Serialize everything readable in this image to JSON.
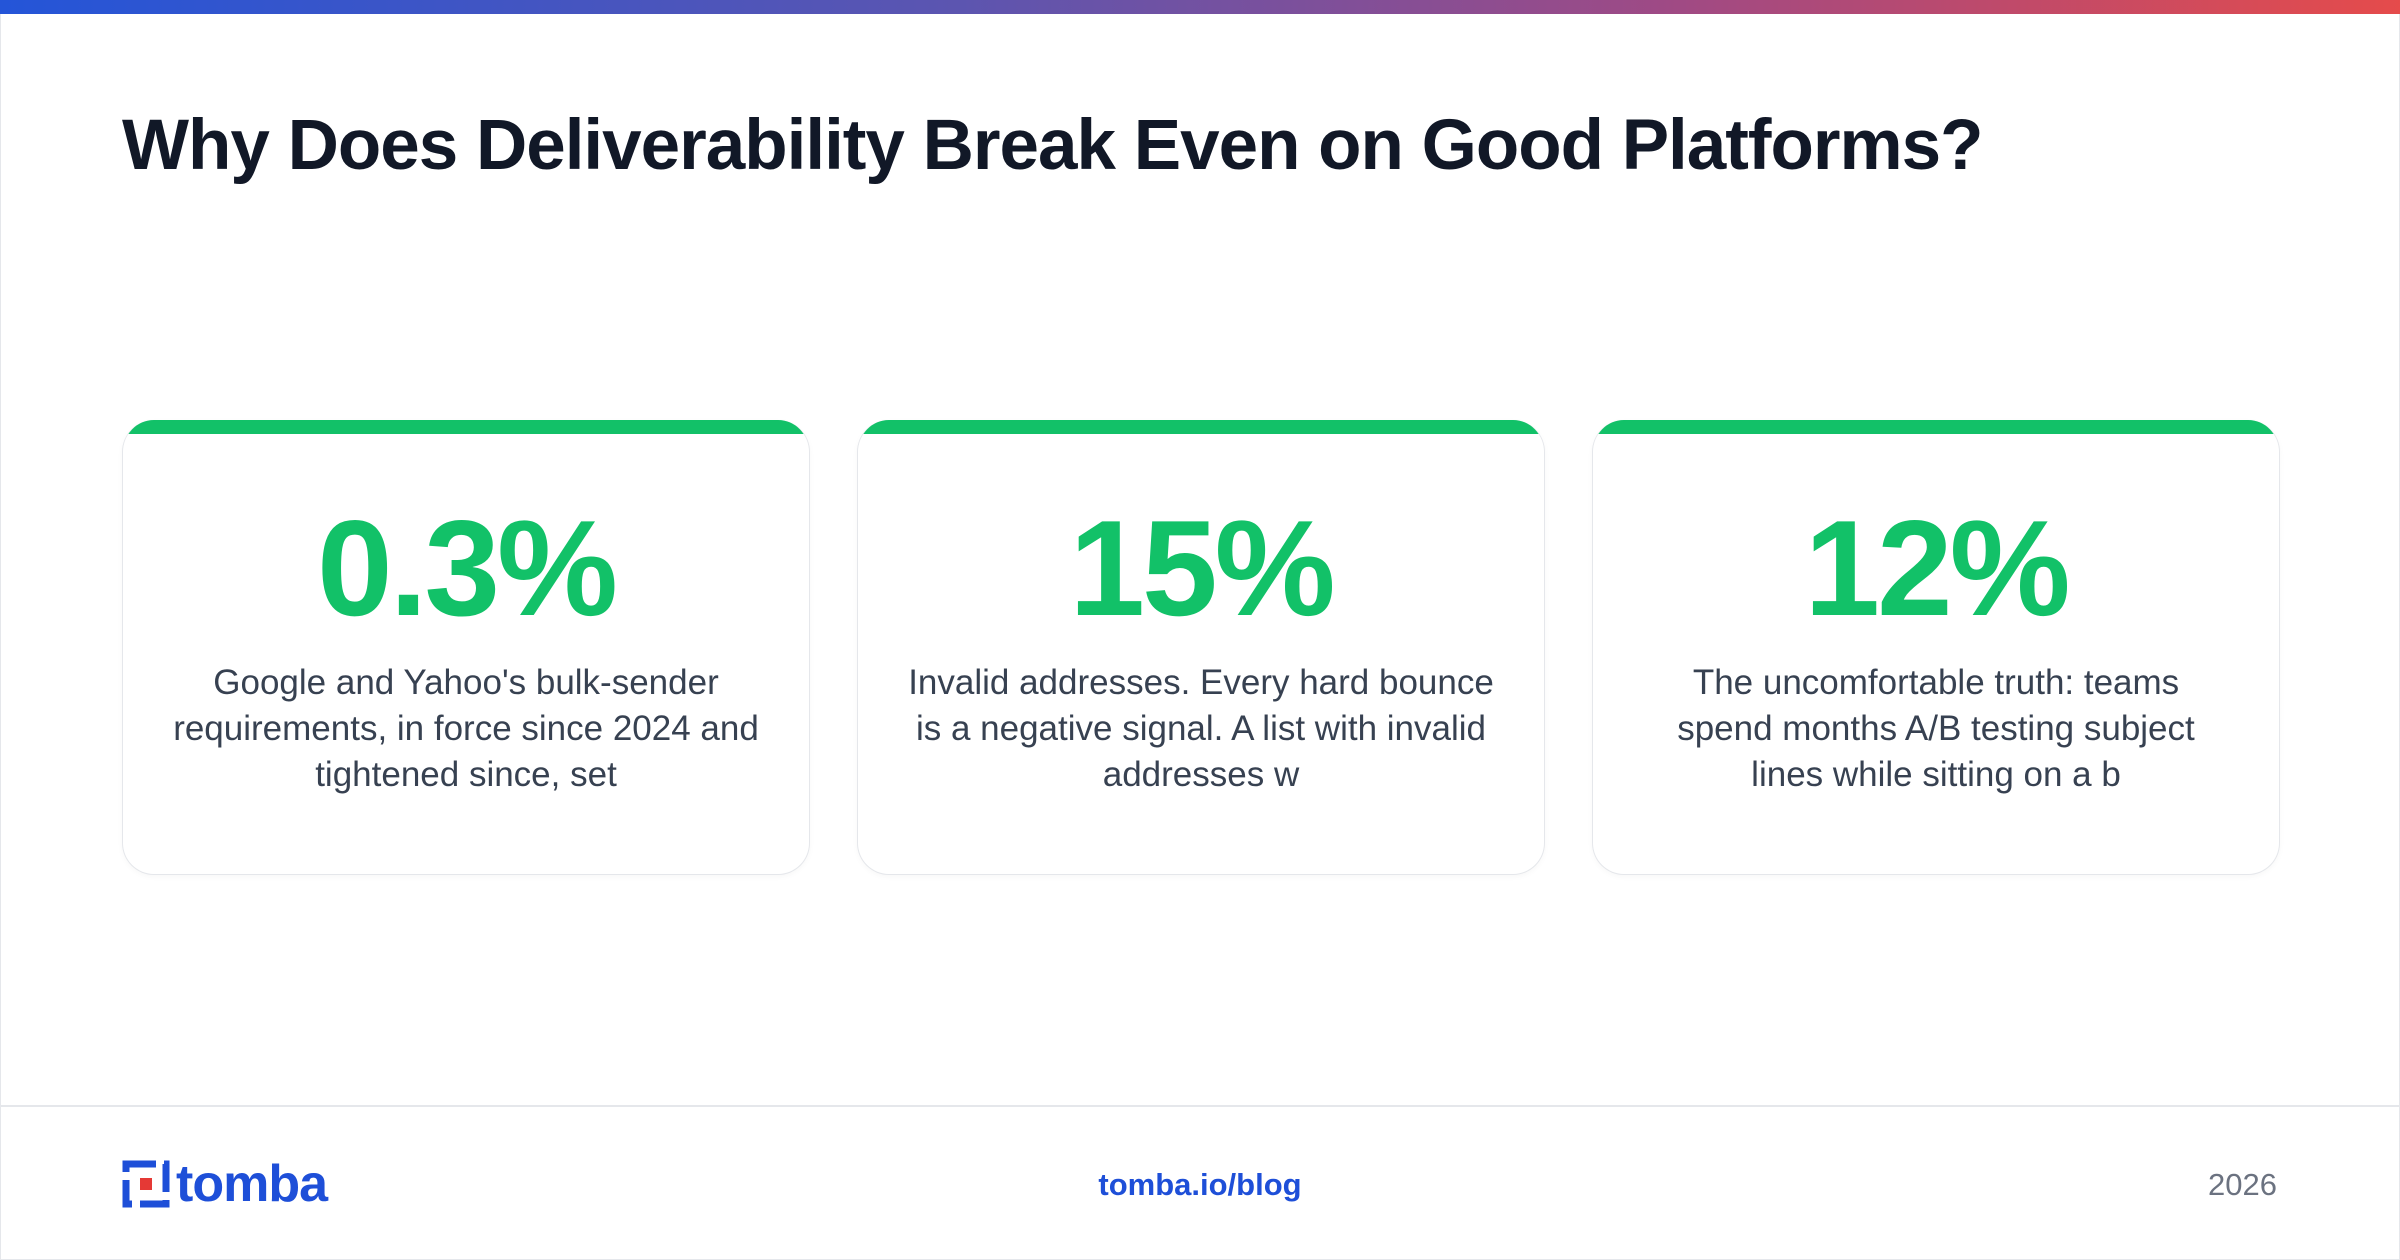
{
  "title": "Why Does Deliverability Break Even on Good Platforms?",
  "stats": [
    {
      "value": "0.3%",
      "description": "Google and Yahoo's bulk-sender requirements, in force since 2024 and tightened since, set"
    },
    {
      "value": "15%",
      "description": "Invalid addresses. Every hard bounce is a negative signal. A list with invalid addresses w"
    },
    {
      "value": "12%",
      "description": "The uncomfortable truth: teams spend months A/B testing subject lines while sitting on a b"
    }
  ],
  "footer": {
    "logo_text": "tomba",
    "link": "tomba.io/blog",
    "year": "2026"
  },
  "colors": {
    "accent": "#12c168",
    "brand": "#1e4fd8",
    "logo_red": "#e53935",
    "title": "#111827"
  }
}
